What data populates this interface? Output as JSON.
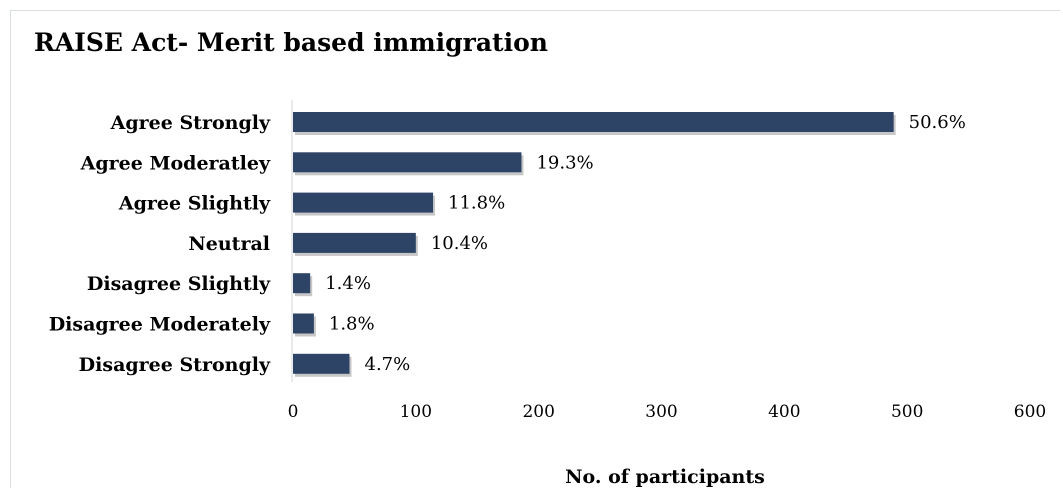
{
  "chart_data": {
    "type": "bar",
    "orientation": "horizontal",
    "title": "RAISE Act- Merit based immigration",
    "xlabel": "No. of participants",
    "ylabel": "",
    "categories": [
      "Agree Strongly",
      "Agree Moderatley",
      "Agree Slightly",
      "Neutral",
      "Disagree Slightly",
      "Disagree Moderately",
      "Disagree Strongly"
    ],
    "values": [
      489,
      186,
      114,
      100,
      14,
      17,
      46
    ],
    "data_labels": [
      "50.6%",
      "19.3%",
      "11.8%",
      "10.4%",
      "1.4%",
      "1.8%",
      "4.7%"
    ],
    "xlim": [
      0,
      600
    ],
    "xticks": [
      "0",
      "100",
      "200",
      "300",
      "400",
      "500",
      "600"
    ],
    "grid": false,
    "bar_color": "#2e4466"
  }
}
